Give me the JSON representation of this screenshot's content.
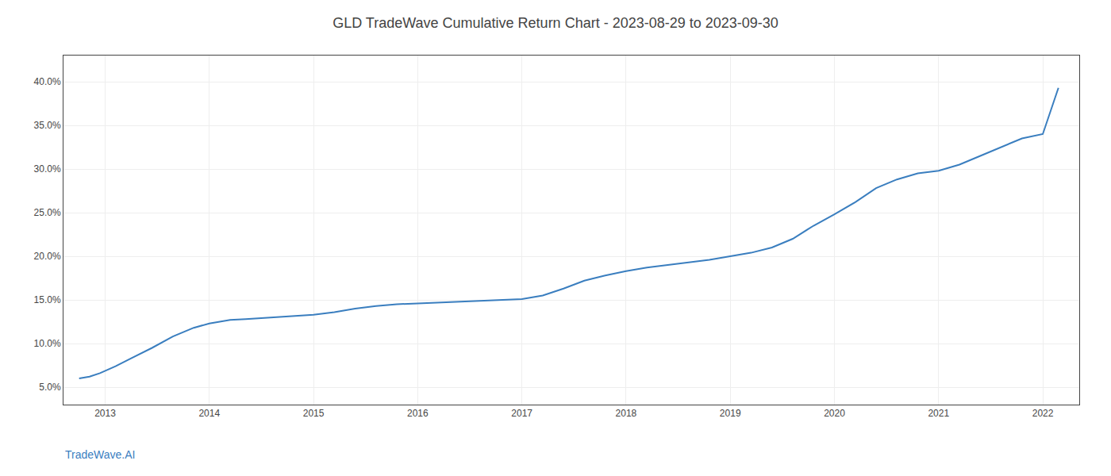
{
  "chart_data": {
    "type": "line",
    "title": "GLD TradeWave Cumulative Return Chart - 2023-08-29 to 2023-09-30",
    "x": [
      2012.75,
      2012.85,
      2012.95,
      2013.1,
      2013.25,
      2013.45,
      2013.65,
      2013.85,
      2014.0,
      2014.1,
      2014.2,
      2014.35,
      2014.5,
      2014.65,
      2014.8,
      2015.0,
      2015.2,
      2015.4,
      2015.6,
      2015.8,
      2016.0,
      2016.2,
      2016.4,
      2016.6,
      2016.8,
      2017.0,
      2017.2,
      2017.4,
      2017.6,
      2017.8,
      2018.0,
      2018.2,
      2018.4,
      2018.6,
      2018.8,
      2019.0,
      2019.2,
      2019.4,
      2019.6,
      2019.8,
      2020.0,
      2020.2,
      2020.4,
      2020.6,
      2020.8,
      2021.0,
      2021.2,
      2021.4,
      2021.6,
      2021.8,
      2022.0,
      2022.15
    ],
    "values": [
      0.06,
      0.062,
      0.066,
      0.074,
      0.083,
      0.095,
      0.108,
      0.118,
      0.123,
      0.125,
      0.127,
      0.128,
      0.129,
      0.13,
      0.131,
      0.133,
      0.136,
      0.14,
      0.143,
      0.145,
      0.146,
      0.147,
      0.148,
      0.149,
      0.15,
      0.151,
      0.155,
      0.163,
      0.172,
      0.178,
      0.183,
      0.187,
      0.19,
      0.193,
      0.196,
      0.2,
      0.204,
      0.21,
      0.22,
      0.235,
      0.248,
      0.262,
      0.278,
      0.288,
      0.295,
      0.298,
      0.305,
      0.315,
      0.325,
      0.335,
      0.34,
      0.393
    ],
    "color": "#3a7ebf",
    "xlim": [
      2012.6,
      2022.35
    ],
    "xticks": [
      2013,
      2014,
      2015,
      2016,
      2017,
      2018,
      2019,
      2020,
      2021,
      2022
    ],
    "ylim": [
      0.03,
      0.43
    ],
    "yticks": [
      {
        "value": 0.05,
        "label": "5.0%"
      },
      {
        "value": 0.1,
        "label": "10.0%"
      },
      {
        "value": 0.15,
        "label": "15.0%"
      },
      {
        "value": 0.2,
        "label": "20.0%"
      },
      {
        "value": 0.25,
        "label": "25.0%"
      },
      {
        "value": 0.3,
        "label": "30.0%"
      },
      {
        "value": 0.35,
        "label": "35.0%"
      },
      {
        "value": 0.4,
        "label": "40.0%"
      }
    ],
    "grid": true,
    "annotations": [
      "TradeWave.AI"
    ]
  }
}
